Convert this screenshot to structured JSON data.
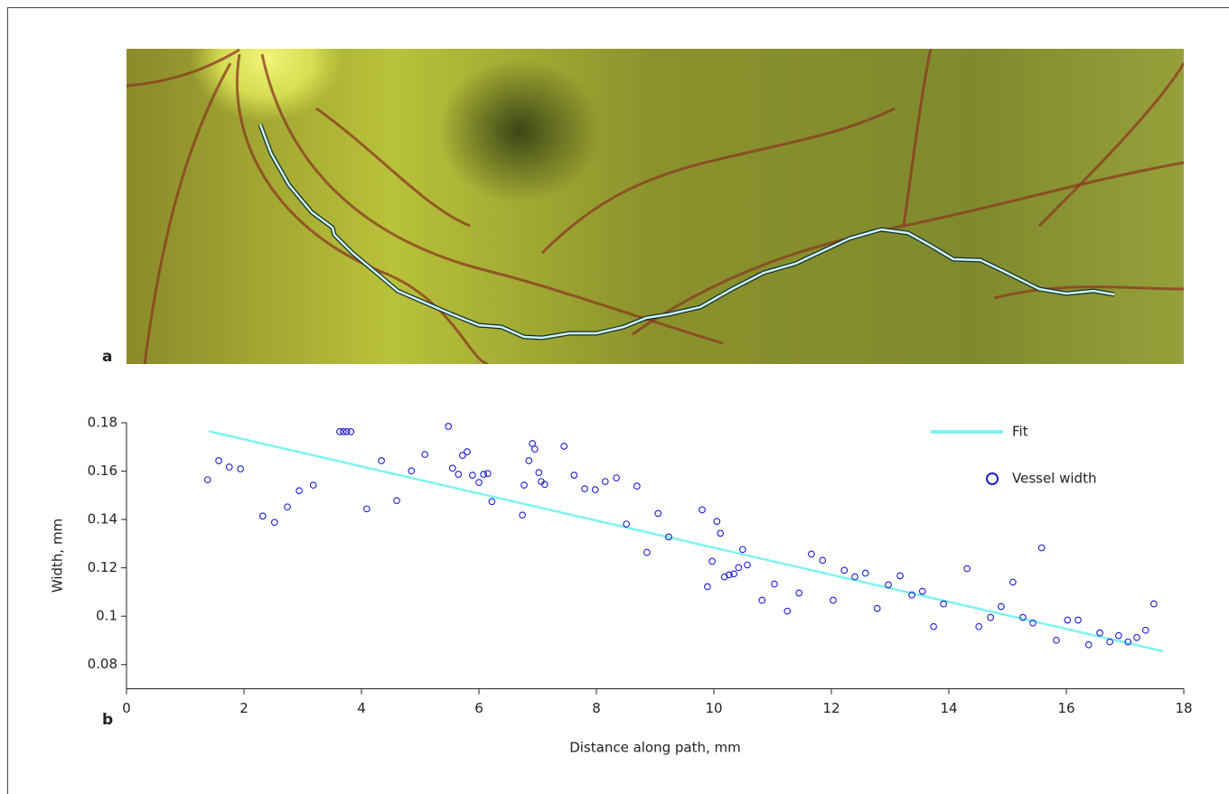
{
  "figure": {
    "panel_a_label": "a",
    "panel_b_label": "b"
  },
  "chart_data": {
    "type": "scatter",
    "x_label": "Distance along path, mm",
    "y_label": "Width, mm",
    "xlim": [
      0,
      18
    ],
    "xticks": [
      0,
      2,
      4,
      6,
      8,
      10,
      12,
      14,
      16,
      18
    ],
    "ylim": [
      0.07,
      0.18
    ],
    "yticks": [
      0.08,
      0.1,
      0.12,
      0.14,
      0.16,
      0.18
    ],
    "grid": false,
    "legend": "upper right",
    "series": [
      {
        "name": "Fit",
        "type": "line",
        "color": "#7ff2f2",
        "x": [
          1.4,
          17.65
        ],
        "values": [
          0.1765,
          0.0855
        ]
      },
      {
        "name": "Vessel width",
        "type": "scatter",
        "color": "#1c1cd6",
        "x": [
          1.38,
          1.57,
          1.75,
          1.94,
          2.32,
          2.52,
          2.74,
          2.94,
          3.18,
          3.63,
          3.69,
          3.75,
          3.82,
          4.09,
          4.34,
          4.6,
          4.85,
          5.08,
          5.48,
          5.55,
          5.65,
          5.72,
          5.8,
          5.89,
          6.0,
          6.08,
          6.15,
          6.22,
          6.74,
          6.77,
          6.85,
          6.91,
          6.95,
          7.02,
          7.06,
          7.12,
          7.45,
          7.62,
          7.8,
          7.98,
          8.15,
          8.34,
          8.51,
          8.69,
          8.86,
          9.05,
          9.23,
          9.8,
          9.89,
          9.97,
          10.05,
          10.11,
          10.18,
          10.26,
          10.34,
          10.42,
          10.49,
          10.57,
          10.82,
          11.03,
          11.25,
          11.45,
          11.66,
          11.85,
          12.03,
          12.22,
          12.4,
          12.58,
          12.78,
          12.97,
          13.17,
          13.37,
          13.55,
          13.74,
          13.91,
          14.31,
          14.51,
          14.71,
          14.89,
          15.09,
          15.26,
          15.43,
          15.58,
          15.83,
          16.02,
          16.2,
          16.38,
          16.57,
          16.74,
          16.89,
          17.05,
          17.2,
          17.35,
          17.49
        ],
        "values": [
          0.1564,
          0.1643,
          0.1617,
          0.1609,
          0.1414,
          0.1388,
          0.1452,
          0.1519,
          0.1542,
          0.1763,
          0.1763,
          0.1763,
          0.1763,
          0.1444,
          0.1643,
          0.1478,
          0.1601,
          0.1669,
          0.1785,
          0.1612,
          0.1587,
          0.1665,
          0.168,
          0.1583,
          0.1553,
          0.1587,
          0.159,
          0.1474,
          0.1418,
          0.1542,
          0.1643,
          0.1714,
          0.1691,
          0.1594,
          0.1557,
          0.1545,
          0.1703,
          0.1583,
          0.1527,
          0.1523,
          0.1557,
          0.1572,
          0.1381,
          0.1538,
          0.1264,
          0.1425,
          0.1328,
          0.144,
          0.1122,
          0.1227,
          0.1392,
          0.1343,
          0.1163,
          0.1171,
          0.1175,
          0.1201,
          0.1276,
          0.1212,
          0.1066,
          0.1133,
          0.1021,
          0.1096,
          0.1257,
          0.1231,
          0.1066,
          0.119,
          0.1163,
          0.1178,
          0.1032,
          0.113,
          0.1167,
          0.1088,
          0.1103,
          0.0957,
          0.1051,
          0.1197,
          0.0957,
          0.0995,
          0.104,
          0.1141,
          0.0995,
          0.0972,
          0.1283,
          0.0901,
          0.0984,
          0.0984,
          0.0882,
          0.0931,
          0.0894,
          0.092,
          0.0894,
          0.0912,
          0.0942,
          0.1051
        ]
      }
    ]
  }
}
